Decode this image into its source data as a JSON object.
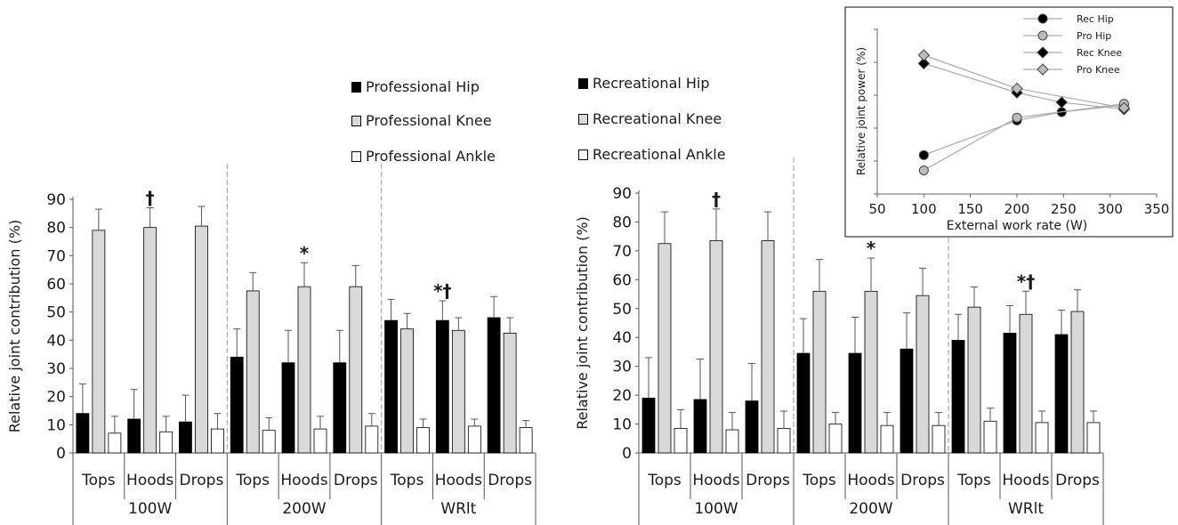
{
  "chart_data": [
    {
      "type": "bar",
      "id": "professional",
      "ylabel": "Relative joint contribution (%)",
      "ylim": [
        0,
        90
      ],
      "yticks": [
        0,
        10,
        20,
        30,
        40,
        50,
        60,
        70,
        80,
        90
      ],
      "groups": [
        "100W",
        "200W",
        "WRlt"
      ],
      "positions": [
        "Tops",
        "Hoods",
        "Drops"
      ],
      "series": [
        {
          "name": "Professional Hip",
          "color": "#000000",
          "values": [
            14,
            12,
            11,
            34,
            32,
            32,
            47,
            47,
            48
          ],
          "errors": [
            10.5,
            10.5,
            9.5,
            10,
            11.5,
            11.5,
            7.5,
            7,
            7.5
          ]
        },
        {
          "name": "Professional Knee",
          "color": "#d9d9d9",
          "values": [
            79,
            80,
            80.5,
            57.5,
            59,
            59,
            44,
            43.5,
            42.5
          ],
          "errors": [
            7.5,
            7,
            7,
            6.5,
            8.5,
            7.5,
            5.5,
            4.5,
            5.5
          ]
        },
        {
          "name": "Professional Ankle",
          "color": "#ffffff",
          "values": [
            7,
            7.5,
            8.5,
            8,
            8.5,
            9.5,
            9,
            9.5,
            9
          ],
          "errors": [
            6,
            5.5,
            5.5,
            4.5,
            4.5,
            4.5,
            3,
            2.5,
            2.5
          ]
        }
      ],
      "annotations": [
        {
          "text": "†",
          "series": 1,
          "index": 1
        },
        {
          "text": "*",
          "series": 1,
          "index": 4
        },
        {
          "text": "*†",
          "series": 0,
          "index": 7
        }
      ]
    },
    {
      "type": "bar",
      "id": "recreational",
      "ylabel": "Relative joint contribution (%)",
      "ylim": [
        0,
        90
      ],
      "yticks": [
        0,
        10,
        20,
        30,
        40,
        50,
        60,
        70,
        80,
        90
      ],
      "groups": [
        "100W",
        "200W",
        "WRlt"
      ],
      "positions": [
        "Tops",
        "Hoods",
        "Drops"
      ],
      "series": [
        {
          "name": "Recreational Hip",
          "color": "#000000",
          "values": [
            19,
            18.5,
            18,
            34.5,
            34.5,
            36,
            39,
            41.5,
            41
          ],
          "errors": [
            14,
            14,
            13,
            12,
            12.5,
            12.5,
            9,
            9.5,
            8.5
          ]
        },
        {
          "name": "Recreational Knee",
          "color": "#d9d9d9",
          "values": [
            72.5,
            73.5,
            73.5,
            56,
            56,
            54.5,
            50.5,
            48,
            49
          ],
          "errors": [
            11,
            11,
            10,
            11,
            11.5,
            9.5,
            7,
            8,
            7.5
          ]
        },
        {
          "name": "Recreational Ankle",
          "color": "#ffffff",
          "values": [
            8.5,
            8,
            8.5,
            10,
            9.5,
            9.5,
            11,
            10.5,
            10.5
          ],
          "errors": [
            6.5,
            6,
            6,
            4,
            4.5,
            4.5,
            4.5,
            4,
            4
          ]
        }
      ],
      "annotations": [
        {
          "text": "†",
          "series": 1,
          "index": 1
        },
        {
          "text": "*",
          "series": 1,
          "index": 4
        },
        {
          "text": "*†",
          "series": 1,
          "index": 7
        }
      ]
    },
    {
      "type": "line",
      "id": "inset",
      "xlabel": "External work rate (W)",
      "ylabel": "Relative joint power (%)",
      "xlim": [
        50,
        350
      ],
      "xticks": [
        50,
        100,
        150,
        200,
        250,
        300,
        350
      ],
      "ylim": [
        0,
        1
      ],
      "series": [
        {
          "name": "Rec Hip",
          "marker": "circle",
          "fill": "#000000",
          "x": [
            100,
            200,
            248,
            315
          ],
          "y": [
            0.28,
            0.53,
            0.59,
            0.64
          ]
        },
        {
          "name": "Pro Hip",
          "marker": "circle",
          "fill": "#bbbbbb",
          "x": [
            100,
            200,
            315
          ],
          "y": [
            0.17,
            0.55,
            0.65
          ]
        },
        {
          "name": "Rec Knee",
          "marker": "diamond",
          "fill": "#000000",
          "x": [
            100,
            200,
            248,
            315
          ],
          "y": [
            0.94,
            0.73,
            0.66,
            0.61
          ]
        },
        {
          "name": "Pro Knee",
          "marker": "diamond",
          "fill": "#bbbbbb",
          "x": [
            100,
            200,
            315
          ],
          "y": [
            1.0,
            0.76,
            0.62
          ]
        }
      ]
    }
  ]
}
